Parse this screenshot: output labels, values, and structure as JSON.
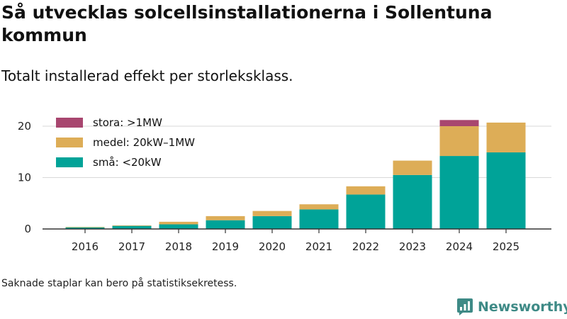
{
  "title": "Så utvecklas solcellsinstallationerna i Sollentuna kommun",
  "subtitle": "Totalt installerad effekt per storleksklass.",
  "footnote": "Saknade staplar kan bero på statistiksekretess.",
  "brand": "Newsworthy",
  "colors": {
    "small": "#00a398",
    "medium": "#ddad57",
    "large": "#a8466f",
    "axis": "#333333",
    "grid": "#d9d9d9",
    "brand": "#3e8a86"
  },
  "chart_data": {
    "type": "bar",
    "stacked": true,
    "title": "Så utvecklas solcellsinstallationerna i Sollentuna kommun",
    "subtitle": "Totalt installerad effekt per storleksklass.",
    "xlabel": "",
    "ylabel": "",
    "ylim": [
      0,
      22
    ],
    "yticks": [
      0,
      10,
      20
    ],
    "grid": true,
    "legend_position": "top-left",
    "categories": [
      "2016",
      "2017",
      "2018",
      "2019",
      "2020",
      "2021",
      "2022",
      "2023",
      "2024",
      "2025"
    ],
    "series": [
      {
        "name": "små: <20kW",
        "key": "small",
        "values": [
          0.3,
          0.6,
          0.9,
          1.7,
          2.5,
          3.8,
          6.7,
          10.5,
          14.2,
          14.9
        ]
      },
      {
        "name": "medel: 20kW–1MW",
        "key": "medium",
        "values": [
          0.1,
          0.1,
          0.5,
          0.8,
          1.0,
          1.0,
          1.6,
          2.8,
          5.8,
          5.8
        ]
      },
      {
        "name": "stora: >1MW",
        "key": "large",
        "values": [
          0,
          0,
          0,
          0,
          0,
          0,
          0,
          0,
          1.2,
          0
        ]
      }
    ]
  }
}
